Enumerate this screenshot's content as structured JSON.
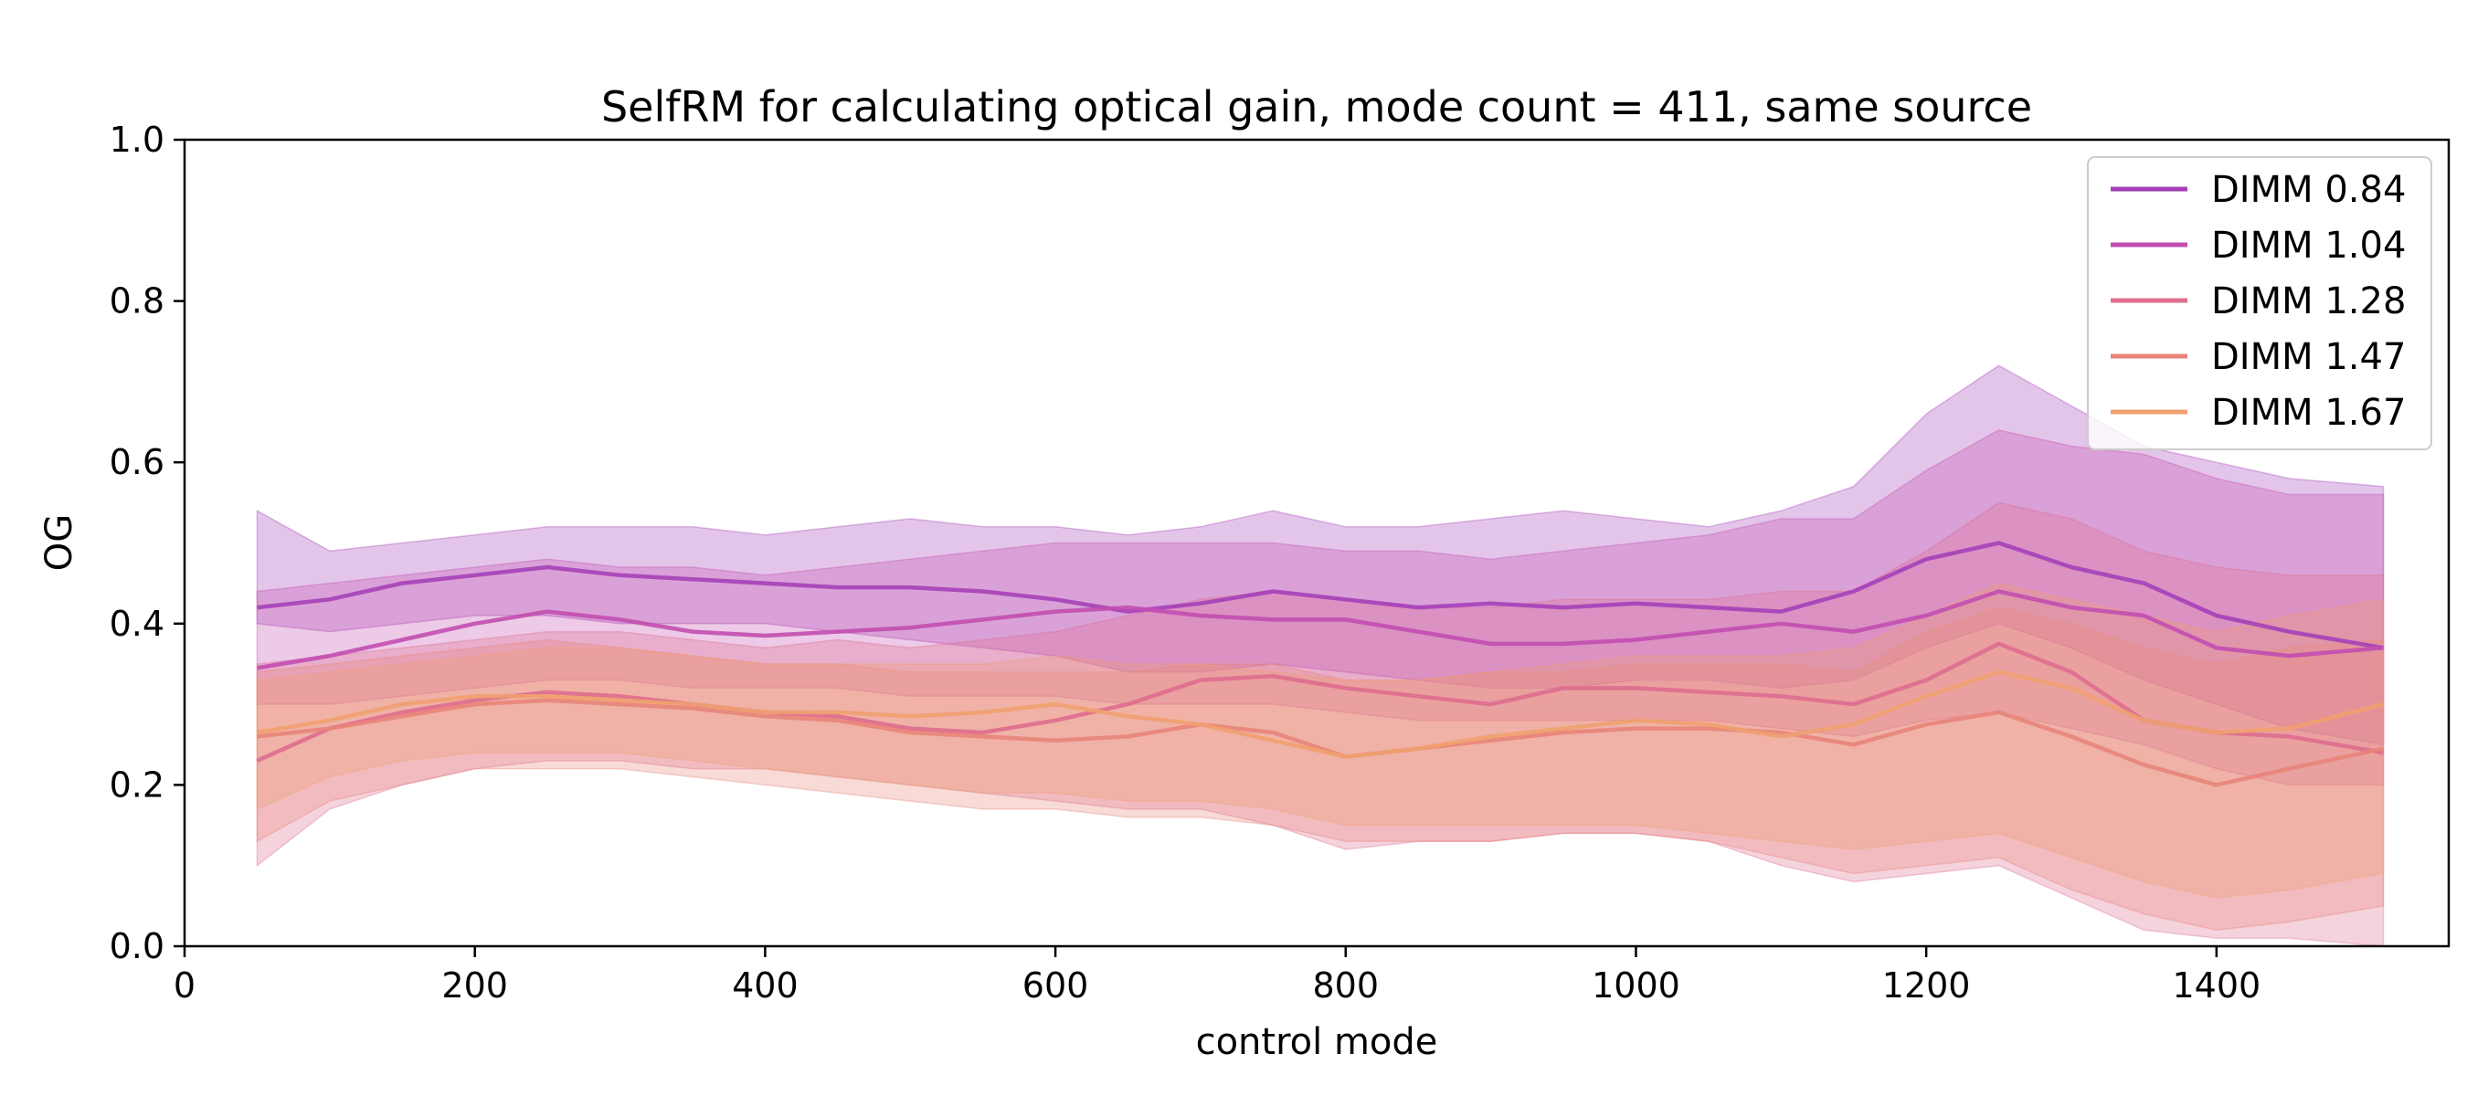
{
  "chart_data": {
    "type": "line",
    "title": "SelfRM for calculating optical gain, mode count = 411, same source",
    "xlabel": "control mode",
    "ylabel": "OG",
    "xlim": [
      0,
      1560
    ],
    "ylim": [
      0.0,
      1.0
    ],
    "xticks": [
      0,
      200,
      400,
      600,
      800,
      1000,
      1200,
      1400
    ],
    "yticks": [
      0.0,
      0.2,
      0.4,
      0.6,
      0.8,
      1.0
    ],
    "xtick_labels": [
      "0",
      "200",
      "400",
      "600",
      "800",
      "1000",
      "1200",
      "1400"
    ],
    "ytick_labels": [
      "0.0",
      "0.2",
      "0.4",
      "0.6",
      "0.8",
      "1.0"
    ],
    "grid": false,
    "legend_position": "top-right",
    "x": [
      50,
      100,
      150,
      200,
      250,
      300,
      350,
      400,
      450,
      500,
      550,
      600,
      650,
      700,
      750,
      800,
      850,
      900,
      950,
      1000,
      1050,
      1100,
      1150,
      1200,
      1250,
      1300,
      1350,
      1400,
      1450,
      1515
    ],
    "series": [
      {
        "name": "DIMM 0.84",
        "color": "#a540b8",
        "values": [
          0.42,
          0.43,
          0.45,
          0.46,
          0.47,
          0.46,
          0.455,
          0.45,
          0.445,
          0.445,
          0.44,
          0.43,
          0.415,
          0.425,
          0.44,
          0.43,
          0.42,
          0.425,
          0.42,
          0.425,
          0.42,
          0.415,
          0.44,
          0.48,
          0.5,
          0.47,
          0.45,
          0.41,
          0.39,
          0.37
        ],
        "band_upper": [
          0.54,
          0.49,
          0.5,
          0.51,
          0.52,
          0.52,
          0.52,
          0.51,
          0.52,
          0.53,
          0.52,
          0.52,
          0.51,
          0.52,
          0.54,
          0.52,
          0.52,
          0.53,
          0.54,
          0.53,
          0.52,
          0.54,
          0.57,
          0.66,
          0.72,
          0.67,
          0.62,
          0.6,
          0.58,
          0.57
        ],
        "band_lower": [
          0.4,
          0.39,
          0.4,
          0.41,
          0.41,
          0.4,
          0.4,
          0.4,
          0.39,
          0.38,
          0.37,
          0.36,
          0.34,
          0.34,
          0.35,
          0.34,
          0.33,
          0.32,
          0.32,
          0.33,
          0.33,
          0.32,
          0.33,
          0.37,
          0.4,
          0.37,
          0.33,
          0.3,
          0.27,
          0.25
        ]
      },
      {
        "name": "DIMM 1.04",
        "color": "#c24eb0",
        "values": [
          0.345,
          0.36,
          0.38,
          0.4,
          0.415,
          0.405,
          0.39,
          0.385,
          0.39,
          0.395,
          0.405,
          0.415,
          0.42,
          0.41,
          0.405,
          0.405,
          0.39,
          0.375,
          0.375,
          0.38,
          0.39,
          0.4,
          0.39,
          0.41,
          0.44,
          0.42,
          0.41,
          0.37,
          0.36,
          0.37
        ],
        "band_upper": [
          0.44,
          0.45,
          0.46,
          0.47,
          0.48,
          0.47,
          0.47,
          0.46,
          0.47,
          0.48,
          0.49,
          0.5,
          0.5,
          0.5,
          0.5,
          0.49,
          0.49,
          0.48,
          0.49,
          0.5,
          0.51,
          0.53,
          0.53,
          0.59,
          0.64,
          0.62,
          0.61,
          0.58,
          0.56,
          0.56
        ],
        "band_lower": [
          0.3,
          0.3,
          0.31,
          0.32,
          0.33,
          0.33,
          0.32,
          0.32,
          0.32,
          0.31,
          0.31,
          0.31,
          0.3,
          0.3,
          0.3,
          0.29,
          0.28,
          0.28,
          0.28,
          0.28,
          0.28,
          0.27,
          0.26,
          0.28,
          0.29,
          0.27,
          0.25,
          0.22,
          0.2,
          0.2
        ]
      },
      {
        "name": "DIMM 1.28",
        "color": "#de6d8e",
        "values": [
          0.23,
          0.27,
          0.29,
          0.305,
          0.315,
          0.31,
          0.3,
          0.29,
          0.285,
          0.27,
          0.265,
          0.28,
          0.3,
          0.33,
          0.335,
          0.32,
          0.31,
          0.3,
          0.32,
          0.32,
          0.315,
          0.31,
          0.3,
          0.33,
          0.375,
          0.34,
          0.28,
          0.265,
          0.26,
          0.24
        ],
        "band_upper": [
          0.35,
          0.36,
          0.37,
          0.38,
          0.39,
          0.39,
          0.38,
          0.37,
          0.38,
          0.37,
          0.38,
          0.39,
          0.41,
          0.43,
          0.44,
          0.43,
          0.42,
          0.42,
          0.43,
          0.43,
          0.43,
          0.44,
          0.44,
          0.49,
          0.55,
          0.53,
          0.49,
          0.47,
          0.46,
          0.46
        ],
        "band_lower": [
          0.1,
          0.17,
          0.2,
          0.22,
          0.23,
          0.23,
          0.22,
          0.22,
          0.21,
          0.2,
          0.19,
          0.18,
          0.17,
          0.17,
          0.15,
          0.12,
          0.13,
          0.13,
          0.14,
          0.14,
          0.13,
          0.1,
          0.08,
          0.09,
          0.1,
          0.06,
          0.02,
          0.01,
          0.01,
          0.0
        ]
      },
      {
        "name": "DIMM 1.47",
        "color": "#e8847a",
        "values": [
          0.26,
          0.27,
          0.285,
          0.3,
          0.305,
          0.3,
          0.295,
          0.285,
          0.28,
          0.265,
          0.26,
          0.255,
          0.26,
          0.275,
          0.265,
          0.235,
          0.245,
          0.255,
          0.265,
          0.27,
          0.27,
          0.265,
          0.25,
          0.275,
          0.29,
          0.26,
          0.225,
          0.2,
          0.22,
          0.245
        ],
        "band_upper": [
          0.34,
          0.35,
          0.36,
          0.37,
          0.38,
          0.37,
          0.36,
          0.35,
          0.35,
          0.34,
          0.34,
          0.34,
          0.34,
          0.35,
          0.35,
          0.33,
          0.33,
          0.34,
          0.34,
          0.35,
          0.35,
          0.35,
          0.34,
          0.39,
          0.42,
          0.4,
          0.37,
          0.35,
          0.37,
          0.38
        ],
        "band_lower": [
          0.13,
          0.18,
          0.2,
          0.22,
          0.22,
          0.22,
          0.21,
          0.2,
          0.19,
          0.18,
          0.17,
          0.17,
          0.16,
          0.16,
          0.15,
          0.13,
          0.13,
          0.13,
          0.14,
          0.14,
          0.13,
          0.11,
          0.09,
          0.1,
          0.11,
          0.07,
          0.04,
          0.02,
          0.03,
          0.05
        ]
      },
      {
        "name": "DIMM 1.67",
        "color": "#f0a070",
        "values": [
          0.265,
          0.28,
          0.3,
          0.31,
          0.31,
          0.305,
          0.3,
          0.29,
          0.29,
          0.285,
          0.29,
          0.3,
          0.285,
          0.275,
          0.255,
          0.235,
          0.245,
          0.26,
          0.27,
          0.28,
          0.275,
          0.26,
          0.275,
          0.31,
          0.34,
          0.32,
          0.28,
          0.265,
          0.27,
          0.3
        ],
        "band_upper": [
          0.33,
          0.34,
          0.35,
          0.36,
          0.37,
          0.37,
          0.36,
          0.35,
          0.35,
          0.35,
          0.35,
          0.36,
          0.35,
          0.35,
          0.34,
          0.33,
          0.33,
          0.34,
          0.35,
          0.36,
          0.36,
          0.36,
          0.37,
          0.41,
          0.45,
          0.43,
          0.41,
          0.39,
          0.41,
          0.43
        ],
        "band_lower": [
          0.17,
          0.21,
          0.23,
          0.24,
          0.24,
          0.24,
          0.23,
          0.22,
          0.21,
          0.2,
          0.19,
          0.19,
          0.18,
          0.18,
          0.17,
          0.15,
          0.15,
          0.15,
          0.15,
          0.15,
          0.14,
          0.13,
          0.12,
          0.13,
          0.14,
          0.11,
          0.08,
          0.06,
          0.07,
          0.09
        ]
      }
    ]
  }
}
